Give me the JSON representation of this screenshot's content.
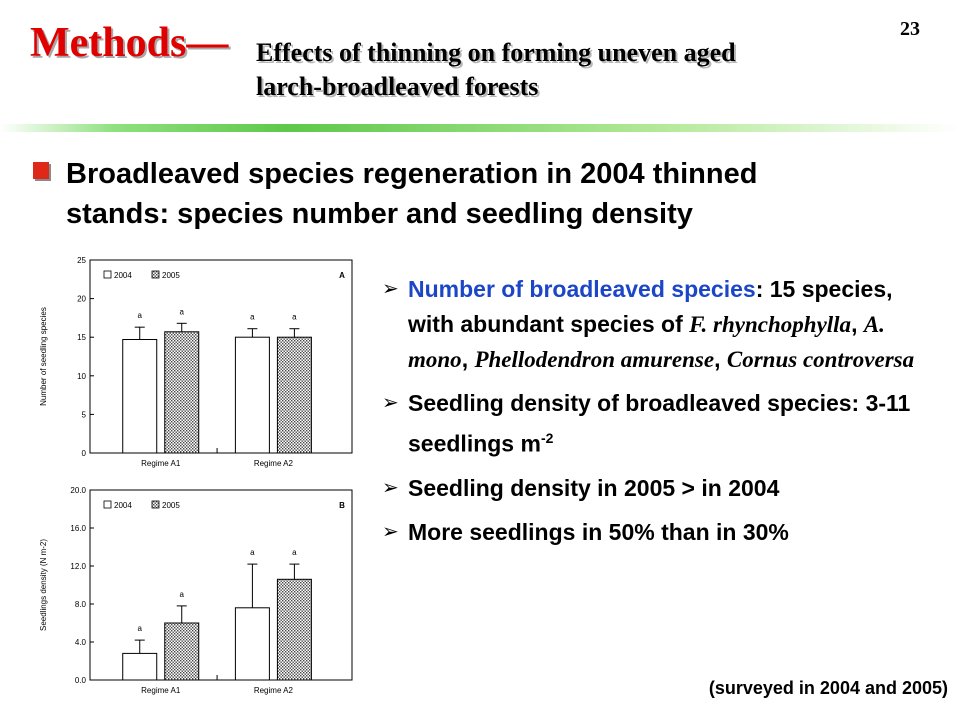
{
  "slide_number": "23",
  "title": {
    "main": "Methods—",
    "sub_line1": "Effects of thinning on forming uneven aged",
    "sub_line2": "larch-broadleaved forests"
  },
  "heading": {
    "line1": "Broadleaved species regeneration in 2004 thinned",
    "line2": "stands: species number and seedling density"
  },
  "bullets": {
    "b1": {
      "label": "Number of broadleaved species",
      "text_a": ": 15 species, with abundant species of ",
      "sp1": "F. rhynchophylla",
      "sep1": ",  ",
      "sp2": "A. mono",
      "sep2": ", ",
      "sp3": "Phellodendron amurense",
      "sep3": ", ",
      "sp4": "Cornus controversa"
    },
    "b2": {
      "text": "Seedling density of broadleaved species: 3-11 seedlings m",
      "sup": "-2"
    },
    "b3": {
      "text": "Seedling density in 2005 > in 2004"
    },
    "b4": {
      "text": "More seedlings in 50% than in 30%"
    }
  },
  "note": "(surveyed in 2004 and 2005)",
  "chart_data": [
    {
      "type": "bar",
      "panel": "A",
      "categories": [
        "Regime A1",
        "Regime A2"
      ],
      "series": [
        {
          "name": "2004",
          "values": [
            14.7,
            15.0
          ],
          "errors": [
            1.6,
            1.1
          ],
          "letters": [
            "a",
            "a"
          ],
          "fill": "#ffffff"
        },
        {
          "name": "2005",
          "values": [
            15.7,
            15.0
          ],
          "errors": [
            1.1,
            1.1
          ],
          "letters": [
            "a",
            "a"
          ],
          "fill": "dotted"
        }
      ],
      "ylabel": "Number of seedling species",
      "ylim": [
        0,
        25
      ],
      "yticks": [
        "0",
        "5",
        "10",
        "15",
        "20",
        "25"
      ],
      "legend_position": "top-left"
    },
    {
      "type": "bar",
      "panel": "B",
      "categories": [
        "Regime A1",
        "Regime A2"
      ],
      "series": [
        {
          "name": "2004",
          "values": [
            2.8,
            7.6
          ],
          "errors": [
            1.4,
            4.6
          ],
          "letters": [
            "a",
            "a"
          ],
          "fill": "#ffffff"
        },
        {
          "name": "2005",
          "values": [
            6.0,
            10.6
          ],
          "errors": [
            1.8,
            1.6
          ],
          "letters": [
            "a",
            "a"
          ],
          "fill": "dotted"
        }
      ],
      "ylabel": "Seedlings density (N m-2)",
      "ylim": [
        0,
        20
      ],
      "yticks": [
        "0.0",
        "4.0",
        "8.0",
        "12.0",
        "16.0",
        "20.0"
      ],
      "legend_position": "top-left"
    }
  ]
}
